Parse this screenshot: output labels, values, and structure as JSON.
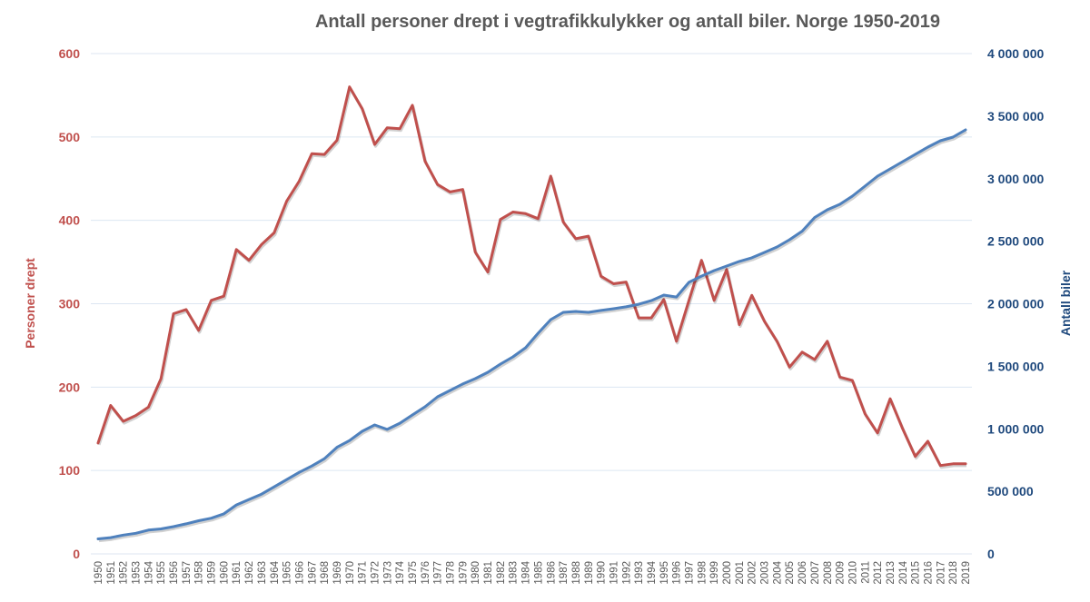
{
  "chart_data": {
    "type": "line",
    "title": "Antall personer drept i vegtrafikkulykker og antall biler. Norge 1950-2019",
    "xlabel": "",
    "ylabel_left": "Personer drept",
    "ylabel_right": "Antall biler",
    "ylim_left": [
      0,
      600
    ],
    "ylim_right": [
      0,
      4000000
    ],
    "grid": true,
    "left_ticks": [
      "0",
      "100",
      "200",
      "300",
      "400",
      "500",
      "600"
    ],
    "left_tick_values": [
      0,
      100,
      200,
      300,
      400,
      500,
      600
    ],
    "right_ticks": [
      "0",
      "500 000",
      "1 000 000",
      "1 500 000",
      "2 000 000",
      "2 500 000",
      "3 000 000",
      "3 500 000",
      "4 000 000"
    ],
    "right_tick_values": [
      0,
      500000,
      1000000,
      1500000,
      2000000,
      2500000,
      3000000,
      3500000,
      4000000
    ],
    "x": [
      "1950",
      "1951",
      "1952",
      "1953",
      "1954",
      "1955",
      "1956",
      "1957",
      "1958",
      "1959",
      "1960",
      "1961",
      "1962",
      "1963",
      "1964",
      "1965",
      "1966",
      "1967",
      "1968",
      "1969",
      "1970",
      "1971",
      "1972",
      "1973",
      "1974",
      "1975",
      "1976",
      "1977",
      "1978",
      "1979",
      "1980",
      "1981",
      "1982",
      "1983",
      "1984",
      "1985",
      "1986",
      "1987",
      "1988",
      "1989",
      "1990",
      "1991",
      "1992",
      "1993",
      "1994",
      "1995",
      "1996",
      "1997",
      "1998",
      "1999",
      "2000",
      "2001",
      "2002",
      "2003",
      "2004",
      "2005",
      "2006",
      "2007",
      "2008",
      "2009",
      "2010",
      "2011",
      "2012",
      "2013",
      "2014",
      "2015",
      "2016",
      "2017",
      "2018",
      "2019"
    ],
    "series": [
      {
        "name": "Personer drept",
        "axis": "left",
        "color": "#c0504d",
        "values": [
          133,
          178,
          159,
          166,
          176,
          210,
          288,
          293,
          268,
          304,
          309,
          365,
          352,
          371,
          385,
          423,
          447,
          480,
          479,
          496,
          560,
          534,
          491,
          511,
          510,
          538,
          471,
          443,
          434,
          437,
          362,
          338,
          401,
          410,
          408,
          402,
          453,
          398,
          378,
          381,
          333,
          324,
          326,
          283,
          283,
          305,
          255,
          304,
          352,
          304,
          341,
          275,
          310,
          279,
          255,
          224,
          242,
          233,
          255,
          212,
          208,
          168,
          145,
          186,
          150,
          117,
          135,
          106,
          108,
          108
        ]
      },
      {
        "name": "Antall biler",
        "axis": "right",
        "color": "#4f81bd",
        "values": [
          120000,
          130000,
          150000,
          165000,
          190000,
          200000,
          218000,
          240000,
          265000,
          285000,
          320000,
          391000,
          435000,
          478000,
          536000,
          594000,
          652000,
          703000,
          761000,
          852000,
          906000,
          980000,
          1031000,
          995000,
          1045000,
          1111000,
          1176000,
          1256000,
          1307000,
          1358000,
          1401000,
          1452000,
          1517000,
          1575000,
          1648000,
          1764000,
          1873000,
          1931000,
          1938000,
          1931000,
          1946000,
          1960000,
          1975000,
          1996000,
          2025000,
          2069000,
          2054000,
          2171000,
          2221000,
          2265000,
          2301000,
          2338000,
          2367000,
          2410000,
          2454000,
          2512000,
          2580000,
          2690000,
          2751000,
          2795000,
          2860000,
          2940000,
          3020000,
          3078000,
          3136000,
          3194000,
          3252000,
          3303000,
          3332000,
          3390000
        ]
      }
    ]
  }
}
